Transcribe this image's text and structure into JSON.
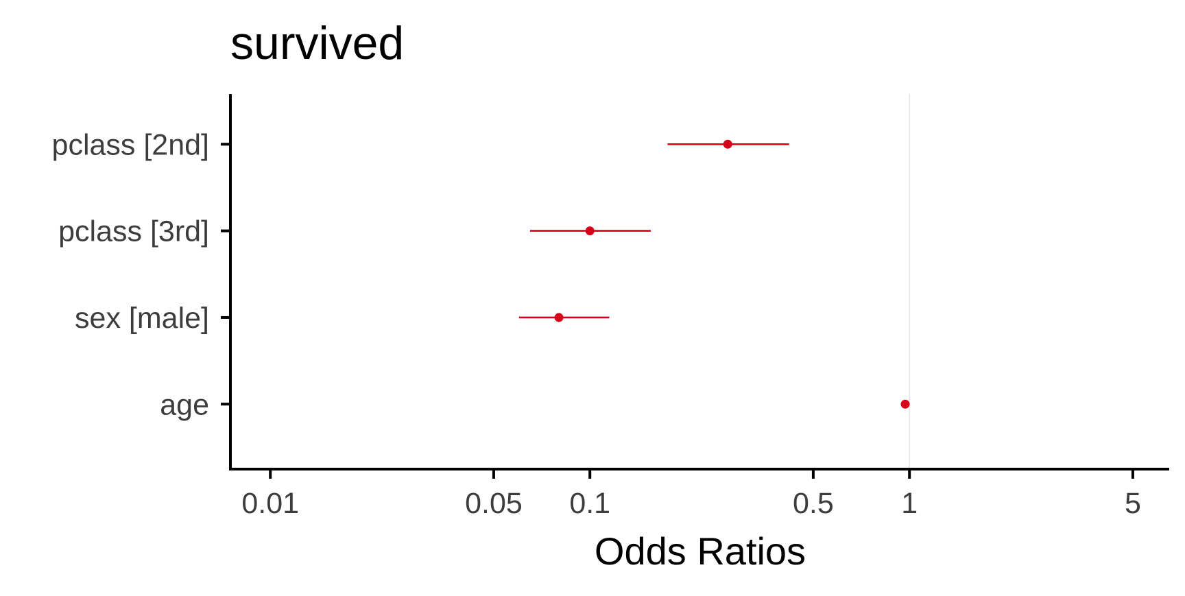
{
  "chart_data": {
    "type": "scatter",
    "subtype": "forest-plot",
    "title": "survived",
    "xlabel": "Odds Ratios",
    "ylabel": "",
    "x_scale": "log10",
    "xlim": [
      0.0075,
      6.5
    ],
    "x_ticks": [
      {
        "value": 0.01,
        "label": "0.01"
      },
      {
        "value": 0.05,
        "label": "0.05"
      },
      {
        "value": 0.1,
        "label": "0.1"
      },
      {
        "value": 0.5,
        "label": "0.5"
      },
      {
        "value": 1,
        "label": "1"
      },
      {
        "value": 5,
        "label": "5"
      }
    ],
    "reference_line": 1,
    "categories": [
      "pclass [2nd]",
      "pclass [3rd]",
      "sex [male]",
      "age"
    ],
    "series": [
      {
        "estimates": [
          0.27,
          0.1,
          0.08,
          0.97
        ],
        "conf_low": [
          0.175,
          0.065,
          0.06,
          0.97
        ],
        "conf_high": [
          0.42,
          0.155,
          0.115,
          0.97
        ]
      }
    ],
    "grid": false,
    "legend": "none",
    "colors": {
      "point": "#d7001b",
      "axis": "#000000",
      "reference_line": "#e3e3e3",
      "tick_label": "#3d3d3d"
    }
  }
}
